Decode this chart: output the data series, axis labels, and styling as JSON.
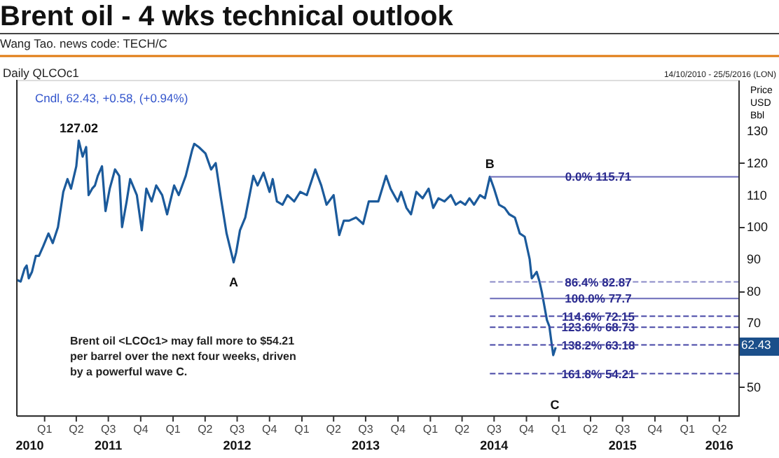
{
  "chart_data": {
    "type": "line",
    "title": "Brent oil - 4 wks technical outlook",
    "subtitle": "Wang Tao.    news code:  TECH/C",
    "ylabel": "Price USD Bbl",
    "xlim": [
      "2010-10-14",
      "2016-05-25"
    ],
    "xticks": [
      {
        "value": "2011-01-01",
        "label": "Q1"
      },
      {
        "value": "2011-04-01",
        "label": "Q2"
      },
      {
        "value": "2011-07-01",
        "label": "Q3"
      },
      {
        "value": "2011-10-01",
        "label": "Q4"
      },
      {
        "value": "2012-01-01",
        "label": "Q1"
      },
      {
        "value": "2012-04-01",
        "label": "Q2"
      },
      {
        "value": "2012-07-01",
        "label": "Q3"
      },
      {
        "value": "2012-10-01",
        "label": "Q4"
      },
      {
        "value": "2013-01-01",
        "label": "Q1"
      },
      {
        "value": "2013-04-01",
        "label": "Q2"
      },
      {
        "value": "2013-07-01",
        "label": "Q3"
      },
      {
        "value": "2013-10-01",
        "label": "Q4"
      },
      {
        "value": "2014-01-01",
        "label": "Q1"
      },
      {
        "value": "2014-04-01",
        "label": "Q2"
      },
      {
        "value": "2014-07-01",
        "label": "Q3"
      },
      {
        "value": "2014-10-01",
        "label": "Q4"
      },
      {
        "value": "2015-01-01",
        "label": "Q1"
      },
      {
        "value": "2015-04-01",
        "label": "Q2"
      },
      {
        "value": "2015-07-01",
        "label": "Q3"
      },
      {
        "value": "2015-10-01",
        "label": "Q4"
      },
      {
        "value": "2016-01-01",
        "label": "Q1"
      },
      {
        "value": "2016-04-01",
        "label": "Q2"
      }
    ],
    "x2ticks": [
      {
        "value": "2010-11-20",
        "label": "2010"
      },
      {
        "value": "2011-07-01",
        "label": "2011"
      },
      {
        "value": "2012-07-01",
        "label": "2012"
      },
      {
        "value": "2013-07-01",
        "label": "2013"
      },
      {
        "value": "2014-07-01",
        "label": "2014"
      },
      {
        "value": "2015-07-01",
        "label": "2015"
      },
      {
        "value": "2016-04-01",
        "label": "2016"
      }
    ],
    "x2lim": [
      "2010-10-14",
      "2016-05-25"
    ],
    "ylim": [
      41,
      146
    ],
    "yticks": [
      50,
      70,
      80,
      90,
      100,
      110,
      120,
      130
    ],
    "series": [
      {
        "type": "line",
        "color": "#1b5a9b",
        "line_style": "solid",
        "x": [
          "2010-10-14",
          "2010-10-25",
          "2010-11-05",
          "2010-11-11",
          "2010-11-17",
          "2010-11-26",
          "2010-12-07",
          "2010-12-16",
          "2010-12-28",
          "2011-01-12",
          "2011-01-24",
          "2011-02-08",
          "2011-02-23",
          "2011-03-07",
          "2011-03-17",
          "2011-04-01",
          "2011-04-08",
          "2011-04-19",
          "2011-04-29",
          "2011-05-06",
          "2011-05-16",
          "2011-05-24",
          "2011-06-01",
          "2011-06-13",
          "2011-06-23",
          "2011-07-05",
          "2011-07-20",
          "2011-08-01",
          "2011-08-09",
          "2011-08-22",
          "2011-09-01",
          "2011-09-20",
          "2011-10-04",
          "2011-10-17",
          "2011-11-01",
          "2011-11-14",
          "2011-12-01",
          "2011-12-15",
          "2012-01-04",
          "2012-01-17",
          "2012-02-06",
          "2012-02-24",
          "2012-03-01",
          "2012-03-14",
          "2012-04-02",
          "2012-04-18",
          "2012-05-01",
          "2012-05-16",
          "2012-06-01",
          "2012-06-21",
          "2012-06-28",
          "2012-07-09",
          "2012-07-24",
          "2012-08-16",
          "2012-08-28",
          "2012-09-14",
          "2012-10-01",
          "2012-10-10",
          "2012-10-22",
          "2012-11-07",
          "2012-11-21",
          "2012-12-10",
          "2012-12-27",
          "2013-01-15",
          "2013-02-08",
          "2013-02-25",
          "2013-03-12",
          "2013-04-01",
          "2013-04-17",
          "2013-04-30",
          "2013-05-15",
          "2013-06-04",
          "2013-06-24",
          "2013-07-10",
          "2013-07-22",
          "2013-08-06",
          "2013-08-28",
          "2013-09-10",
          "2013-09-30",
          "2013-10-10",
          "2013-10-25",
          "2013-11-07",
          "2013-11-22",
          "2013-12-10",
          "2013-12-27",
          "2014-01-09",
          "2014-01-24",
          "2014-02-10",
          "2014-02-28",
          "2014-03-14",
          "2014-03-27",
          "2014-04-10",
          "2014-04-22",
          "2014-05-05",
          "2014-05-22",
          "2014-06-05",
          "2014-06-19",
          "2014-07-01",
          "2014-07-15",
          "2014-07-31",
          "2014-08-13",
          "2014-08-29",
          "2014-09-12",
          "2014-09-26",
          "2014-10-10",
          "2014-10-16",
          "2014-10-30",
          "2014-11-07",
          "2014-11-14",
          "2014-11-28",
          "2014-12-05",
          "2014-12-11",
          "2014-12-16",
          "2014-12-23"
        ],
        "values": [
          83.5,
          83,
          87,
          88,
          84,
          86,
          91,
          91,
          94,
          98,
          95,
          100,
          111,
          115,
          112,
          119,
          127.02,
          122,
          125,
          110,
          112,
          113,
          116,
          119,
          105,
          112,
          118,
          116,
          100,
          108,
          115,
          110,
          99,
          112,
          108,
          113,
          110,
          104,
          113,
          110,
          116,
          124,
          126,
          125,
          123,
          118,
          120,
          109,
          98,
          89,
          92,
          99,
          103,
          116,
          113,
          117,
          111,
          115,
          108,
          107,
          110,
          108,
          111,
          110,
          118,
          113,
          107,
          110,
          97.5,
          102,
          102,
          103,
          101,
          108,
          108,
          108,
          116,
          112,
          108,
          111,
          106,
          104,
          111,
          109,
          112,
          106,
          109,
          108,
          110,
          107,
          108,
          107,
          109,
          107,
          110,
          109,
          115.71,
          112,
          107,
          106,
          104,
          103,
          98,
          97,
          90,
          84,
          86,
          83,
          79.5,
          71,
          69,
          64,
          60,
          62.43
        ]
      },
      {
        "type": "line",
        "name": "0.0%    115.71",
        "color": "#6a6ab8",
        "line_style": "solid",
        "x": [
          "2014-06-19",
          "2016-05-25"
        ],
        "values": [
          115.71,
          115.71
        ]
      },
      {
        "type": "line",
        "name": "86.4%   82.87",
        "color": "#8a8ac8",
        "line_style": "dashed",
        "x": [
          "2014-06-19",
          "2016-05-25"
        ],
        "values": [
          82.87,
          82.87
        ]
      },
      {
        "type": "line",
        "name": "100.0% 77.7",
        "color": "#6a6ab8",
        "line_style": "solid",
        "x": [
          "2014-06-19",
          "2016-05-25"
        ],
        "values": [
          77.7,
          77.7
        ]
      },
      {
        "type": "line",
        "name": "114.6% 72.15",
        "color": "#4545a5",
        "line_style": "dashed",
        "x": [
          "2014-06-19",
          "2016-05-25"
        ],
        "values": [
          72.15,
          72.15
        ]
      },
      {
        "type": "line",
        "name": "123.6% 68.73",
        "color": "#4545a5",
        "line_style": "dashed",
        "x": [
          "2014-06-19",
          "2016-05-25"
        ],
        "values": [
          68.73,
          68.73
        ]
      },
      {
        "type": "line",
        "name": "138.2% 63.18",
        "color": "#4545a5",
        "line_style": "dashed",
        "x": [
          "2014-06-19",
          "2016-05-25"
        ],
        "values": [
          63.18,
          63.18
        ]
      },
      {
        "type": "line",
        "name": "161.8% 54.21",
        "color": "#4545a5",
        "line_style": "dashed",
        "x": [
          "2014-06-19",
          "2016-05-25"
        ],
        "values": [
          54.21,
          54.21
        ]
      }
    ],
    "annotations": [
      "Daily QLCOc1",
      "14/10/2010 - 25/5/2016 (LON)",
      "Cndl, 62.43, +0.58, (+0.94%)",
      "Brent oil <LCOc1> may fall more to $54.21 per barrel over the next four weeks, driven by a powerful wave C.",
      {
        "text": "127.02",
        "x": "2011-04-08",
        "y": 127.02
      },
      {
        "text": "A",
        "x": "2012-06-21",
        "y": 89
      },
      {
        "text": "B",
        "x": "2014-06-19",
        "y": 115.71
      },
      "C",
      "62.43"
    ]
  }
}
